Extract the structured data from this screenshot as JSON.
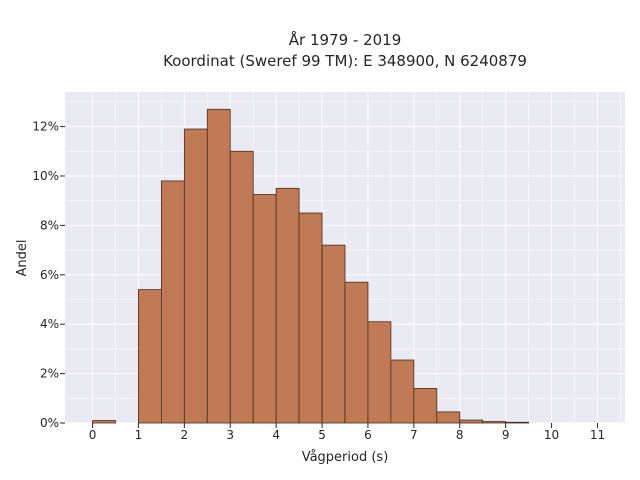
{
  "chart_data": {
    "type": "bar",
    "title": "År 1979 - 2019",
    "subtitle": "Koordinat (Sweref 99 TM): E 348900, N 6240879",
    "xlabel": "Vågperiod (s)",
    "ylabel": "Andel",
    "bin_width": 0.5,
    "bins_start": [
      0,
      1,
      1.5,
      2,
      2.5,
      3,
      3.5,
      4,
      4.5,
      5,
      5.5,
      6,
      6.5,
      7,
      7.5,
      8,
      8.5,
      9
    ],
    "values": [
      0.1,
      5.4,
      9.8,
      11.9,
      12.7,
      11.0,
      9.25,
      9.5,
      8.5,
      7.2,
      5.7,
      4.1,
      2.55,
      1.4,
      0.45,
      0.12,
      0.06,
      0.03
    ],
    "xlim": [
      -0.6,
      11.6
    ],
    "ylim": [
      0,
      13.4
    ],
    "xticks": [
      "0",
      "1",
      "2",
      "3",
      "4",
      "5",
      "6",
      "7",
      "8",
      "9",
      "10",
      "11"
    ],
    "yticks": [
      "0%",
      "2%",
      "4%",
      "6%",
      "8%",
      "10%",
      "12%"
    ],
    "grid": true,
    "bar_color": "#c07b56",
    "edge_color": "#4a2c1c",
    "background_color": "#eaeaf2"
  }
}
